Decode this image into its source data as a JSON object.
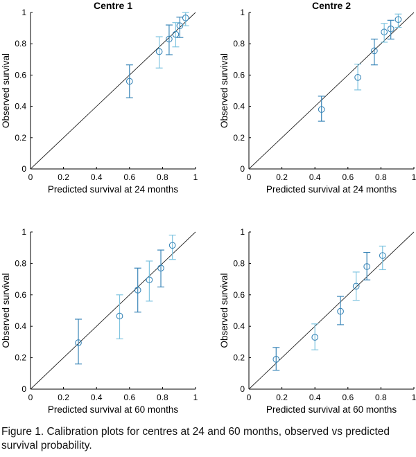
{
  "figure": {
    "caption": "Figure 1. Calibration plots for centres at 24 and 60 months,  observed vs predicted survival probability."
  },
  "colors": {
    "axis": "#000000",
    "reference_line": "#222222",
    "marker": "#3a86b8",
    "errorbar_dark": "#3a86b8",
    "errorbar_light": "#7fc4e0"
  },
  "chart_data": [
    {
      "type": "scatter",
      "title": "Centre 1",
      "xlabel": "Predicted survival at 24 months",
      "ylabel": "Observed survival",
      "xlim": [
        0,
        1
      ],
      "ylim": [
        0,
        1
      ],
      "xticks": [
        "0",
        "0.2",
        "0.4",
        "0.6",
        "0.8",
        "1"
      ],
      "yticks": [
        "0",
        "0.2",
        "0.4",
        "0.6",
        "0.8",
        "1"
      ],
      "reference_line": "y = x",
      "points": [
        {
          "x": 0.6,
          "y": 0.56,
          "lo": 0.455,
          "hi": 0.665
        },
        {
          "x": 0.78,
          "y": 0.75,
          "lo": 0.645,
          "hi": 0.845
        },
        {
          "x": 0.84,
          "y": 0.83,
          "lo": 0.73,
          "hi": 0.92
        },
        {
          "x": 0.88,
          "y": 0.86,
          "lo": 0.78,
          "hi": 0.935
        },
        {
          "x": 0.905,
          "y": 0.915,
          "lo": 0.84,
          "hi": 0.97
        },
        {
          "x": 0.94,
          "y": 0.965,
          "lo": 0.915,
          "hi": 1.0
        }
      ]
    },
    {
      "type": "scatter",
      "title": "Centre 2",
      "xlabel": "Predicted survival at 24 months",
      "ylabel": "Observed survival",
      "xlim": [
        0,
        1
      ],
      "ylim": [
        0,
        1
      ],
      "xticks": [
        "0",
        "0.2",
        "0.4",
        "0.6",
        "0.8",
        "1"
      ],
      "yticks": [
        "0",
        "0.2",
        "0.4",
        "0.6",
        "0.8",
        "1"
      ],
      "reference_line": "y = x",
      "points": [
        {
          "x": 0.44,
          "y": 0.38,
          "lo": 0.305,
          "hi": 0.465
        },
        {
          "x": 0.66,
          "y": 0.585,
          "lo": 0.505,
          "hi": 0.67
        },
        {
          "x": 0.76,
          "y": 0.755,
          "lo": 0.665,
          "hi": 0.83
        },
        {
          "x": 0.82,
          "y": 0.875,
          "lo": 0.81,
          "hi": 0.93
        },
        {
          "x": 0.86,
          "y": 0.895,
          "lo": 0.83,
          "hi": 0.95
        },
        {
          "x": 0.905,
          "y": 0.955,
          "lo": 0.905,
          "hi": 0.99
        }
      ]
    },
    {
      "type": "scatter",
      "title": "",
      "xlabel": "Predicted survival at 60 months",
      "ylabel": "Observed survival",
      "xlim": [
        0,
        1
      ],
      "ylim": [
        0,
        1
      ],
      "xticks": [
        "0",
        "0.2",
        "0.4",
        "0.6",
        "0.8",
        "1"
      ],
      "yticks": [
        "0",
        "0.2",
        "0.4",
        "0.6",
        "0.8",
        "1"
      ],
      "reference_line": "y = x",
      "points": [
        {
          "x": 0.29,
          "y": 0.295,
          "lo": 0.16,
          "hi": 0.445
        },
        {
          "x": 0.54,
          "y": 0.465,
          "lo": 0.32,
          "hi": 0.6
        },
        {
          "x": 0.65,
          "y": 0.63,
          "lo": 0.49,
          "hi": 0.77
        },
        {
          "x": 0.72,
          "y": 0.695,
          "lo": 0.56,
          "hi": 0.815
        },
        {
          "x": 0.79,
          "y": 0.77,
          "lo": 0.65,
          "hi": 0.885
        },
        {
          "x": 0.86,
          "y": 0.915,
          "lo": 0.825,
          "hi": 0.98
        }
      ]
    },
    {
      "type": "scatter",
      "title": "",
      "xlabel": "Predicted survival at 60 months",
      "ylabel": "Observed survival",
      "xlim": [
        0,
        1
      ],
      "ylim": [
        0,
        1
      ],
      "xticks": [
        "0",
        "0.2",
        "0.4",
        "0.6",
        "0.8",
        "1"
      ],
      "yticks": [
        "0",
        "0.2",
        "0.4",
        "0.6",
        "0.8",
        "1"
      ],
      "reference_line": "y = x",
      "points": [
        {
          "x": 0.165,
          "y": 0.19,
          "lo": 0.12,
          "hi": 0.265
        },
        {
          "x": 0.4,
          "y": 0.33,
          "lo": 0.25,
          "hi": 0.415
        },
        {
          "x": 0.555,
          "y": 0.495,
          "lo": 0.41,
          "hi": 0.59
        },
        {
          "x": 0.65,
          "y": 0.655,
          "lo": 0.565,
          "hi": 0.745
        },
        {
          "x": 0.715,
          "y": 0.78,
          "lo": 0.695,
          "hi": 0.87
        },
        {
          "x": 0.81,
          "y": 0.85,
          "lo": 0.76,
          "hi": 0.91
        }
      ]
    }
  ]
}
